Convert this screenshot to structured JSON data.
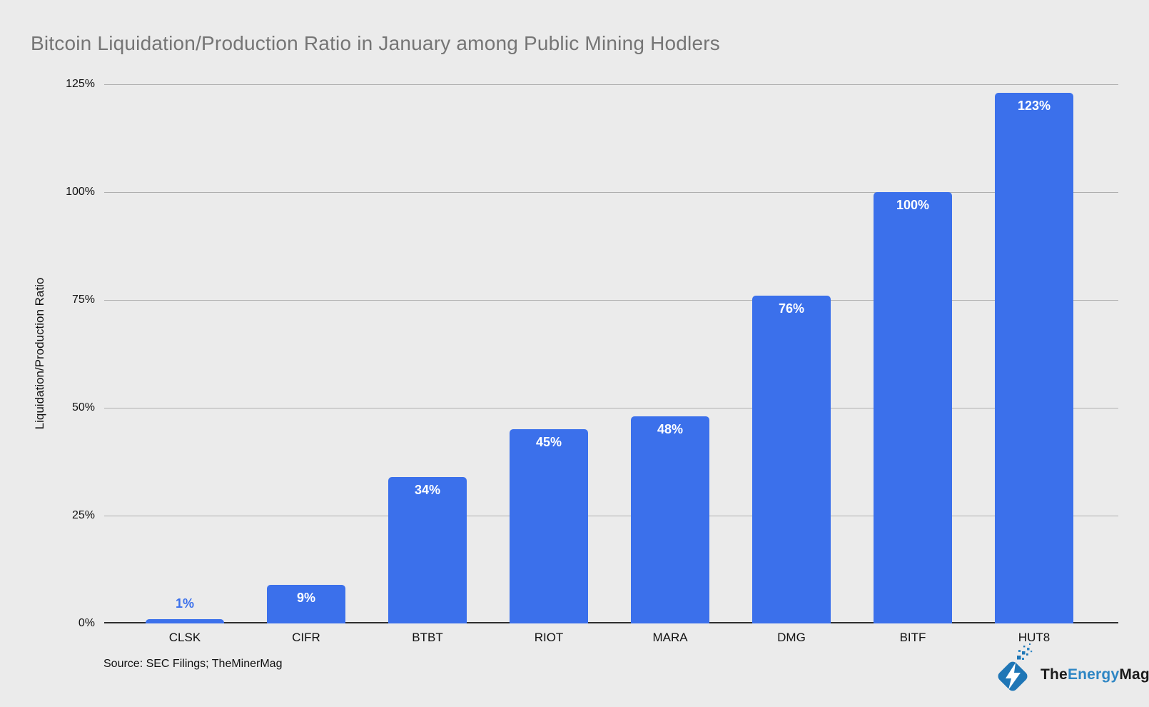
{
  "title": "Bitcoin Liquidation/Production Ratio in January among Public Mining Hodlers",
  "source_note": "Source: SEC Filings; TheMinerMag",
  "branding": {
    "the": "The",
    "energy": "Energy",
    "mag": "Mag",
    "icon": "lightning-bolt-diamond"
  },
  "colors": {
    "background": "#EBEBEB",
    "bar": "#3B70EB",
    "title": "#757575",
    "gridline": "#AFAFAF",
    "axis_line": "#2E2E2E",
    "text": "#111111",
    "logo_blue": "#1F76B6",
    "logo_text_blue": "#2E86C4",
    "logo_text_dark": "#1B1B1B"
  },
  "chart_data": {
    "type": "bar",
    "title": "Bitcoin Liquidation/Production Ratio in January among Public Mining Hodlers",
    "categories": [
      "CLSK",
      "CIFR",
      "BTBT",
      "RIOT",
      "MARA",
      "DMG",
      "BITF",
      "HUT8"
    ],
    "values": [
      1,
      9,
      34,
      45,
      48,
      76,
      100,
      123
    ],
    "value_labels": [
      "1%",
      "9%",
      "34%",
      "45%",
      "48%",
      "76%",
      "100%",
      "123%"
    ],
    "xlabel": "",
    "ylabel": "Liquidation/Production Ratio",
    "yticks": [
      "0%",
      "25%",
      "50%",
      "75%",
      "100%",
      "125%"
    ],
    "ylim": [
      0,
      125
    ],
    "grid": true,
    "legend": "none",
    "bar_color": "#3B70EB"
  }
}
